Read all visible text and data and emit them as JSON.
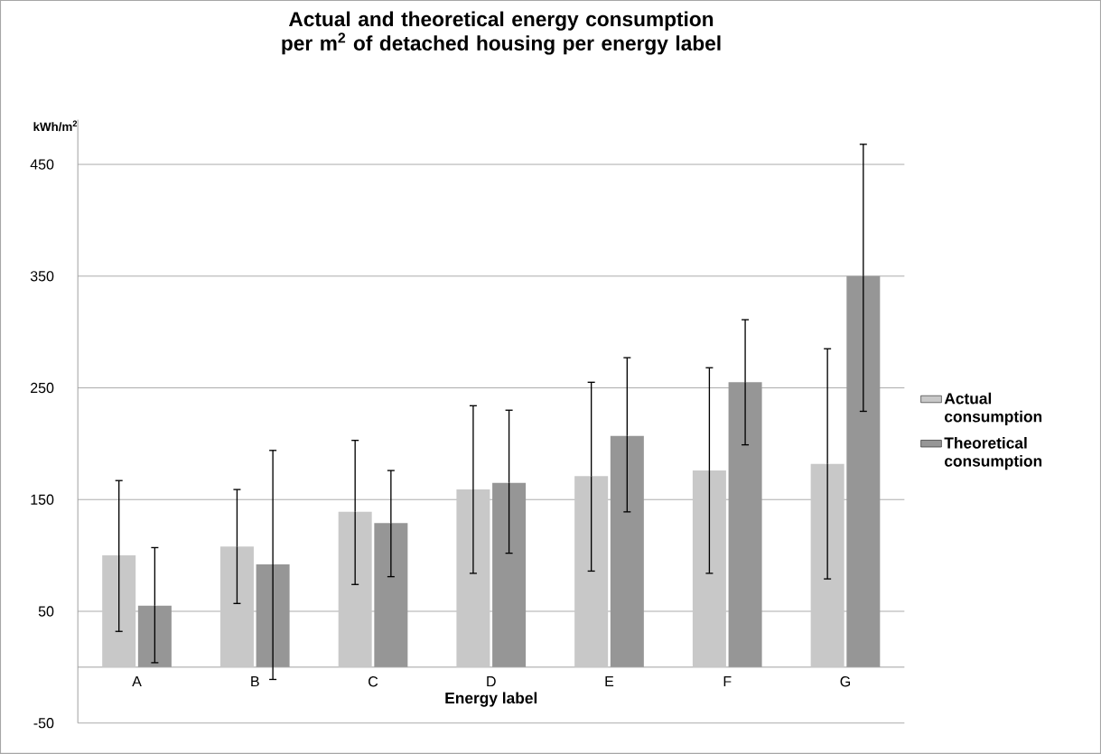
{
  "chart_data": {
    "type": "bar",
    "title": "Actual and theoretical energy consumption per m$^{2}$ of detached housing per energy label",
    "ylabel": "kWh/m$^{2}$",
    "xlabel": "Energy label",
    "categories": [
      "A",
      "B",
      "C",
      "D",
      "E",
      "F",
      "G"
    ],
    "series": [
      {
        "name": "Actual consumption",
        "color": "#c8c8c8",
        "values": [
          100,
          108,
          139,
          159,
          171,
          176,
          182
        ],
        "errors": [
          [
            32,
            167
          ],
          [
            57,
            159
          ],
          [
            74,
            203
          ],
          [
            84,
            234
          ],
          [
            86,
            255
          ],
          [
            84,
            268
          ],
          [
            79,
            285
          ]
        ]
      },
      {
        "name": "Theoretical consumption",
        "color": "#969696",
        "values": [
          55,
          92,
          129,
          165,
          207,
          255,
          350
        ],
        "errors": [
          [
            4,
            107
          ],
          [
            -11,
            194
          ],
          [
            81,
            176
          ],
          [
            102,
            230
          ],
          [
            139,
            277
          ],
          [
            199,
            311
          ],
          [
            229,
            468
          ]
        ]
      }
    ],
    "ylim": [
      -50,
      490
    ],
    "yticks": [
      -50,
      50,
      150,
      250,
      350,
      450
    ],
    "grid": "y",
    "legend": "right"
  }
}
